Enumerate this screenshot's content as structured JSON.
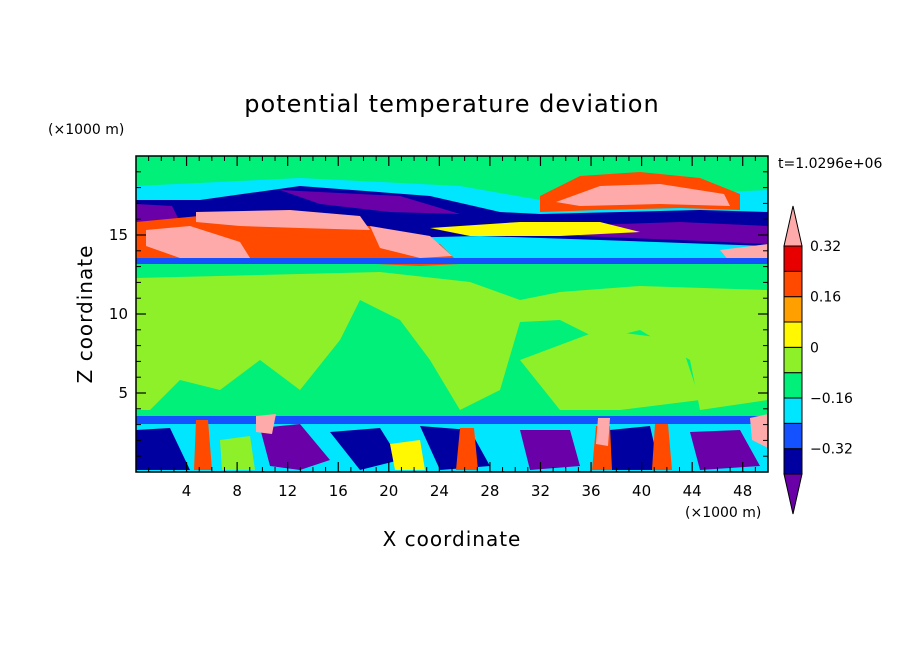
{
  "chart_data": {
    "type": "heatmap",
    "title": "potential temperature deviation",
    "xlabel": "X coordinate",
    "ylabel": "Z coordinate",
    "x_unit": "(×1000 m)",
    "y_unit": "(×1000 m)",
    "time_label": "t=1.0296e+06",
    "xlim": [
      0,
      50
    ],
    "ylim": [
      0,
      20
    ],
    "x_ticks": [
      4,
      8,
      12,
      16,
      20,
      24,
      28,
      32,
      36,
      40,
      44,
      48
    ],
    "y_ticks": [
      5,
      10,
      15
    ],
    "colorbar": {
      "levels": [
        -0.4,
        -0.32,
        -0.24,
        -0.16,
        -0.08,
        0,
        0.08,
        0.16,
        0.24,
        0.32,
        0.4
      ],
      "tick_values": [
        0.32,
        0.16,
        0,
        -0.16,
        -0.32
      ],
      "tick_labels": [
        "0.32",
        "0.16",
        "0",
        "−0.16",
        "−0.32"
      ],
      "colors_low_to_high": [
        "#6a00a8",
        "#0000a0",
        "#1452ff",
        "#00e6ff",
        "#00f07a",
        "#8ef028",
        "#fff800",
        "#ffa000",
        "#ff4a00",
        "#e80000",
        "#ffaaaa"
      ]
    }
  }
}
